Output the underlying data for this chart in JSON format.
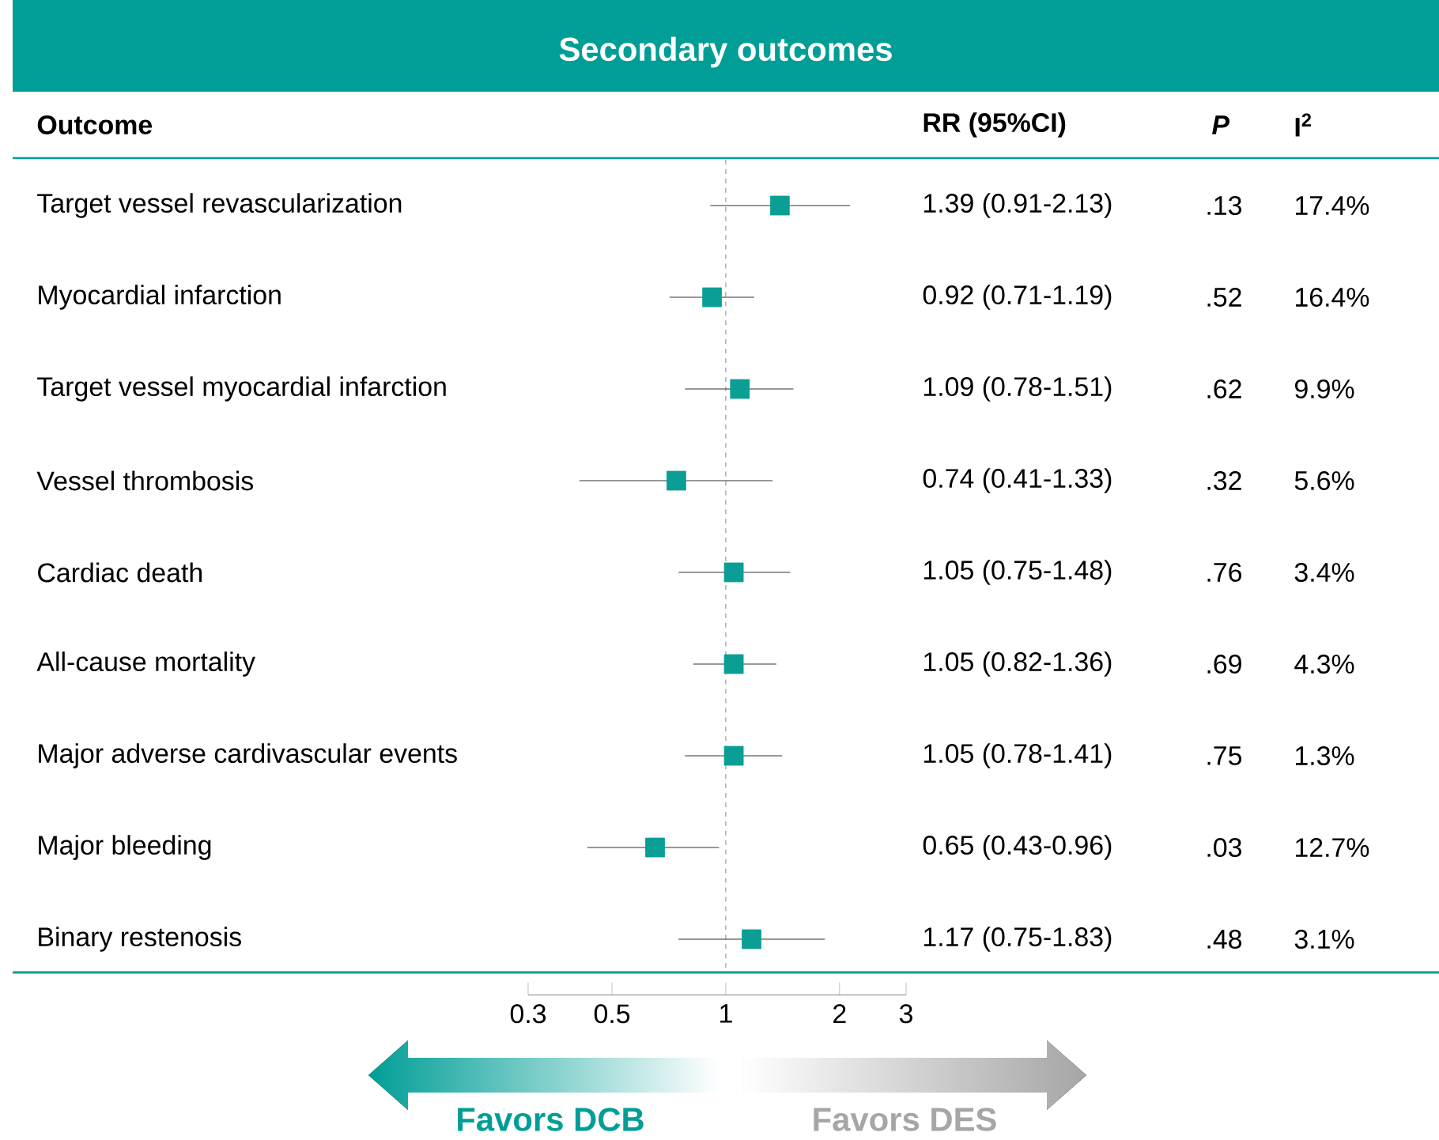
{
  "chart_data": {
    "type": "scatter",
    "title": "Secondary outcomes",
    "orientation": "horizontal",
    "categories": [
      "Target vessel revascularization",
      "Myocardial infarction",
      "Target vessel myocardial infarction",
      "Vessel thrombosis",
      "Cardiac death",
      "All-cause mortality",
      "Major adverse cardivascular events",
      "Major bleeding",
      "Binary restenosis"
    ],
    "values": [
      1.39,
      0.92,
      1.09,
      0.74,
      1.05,
      1.05,
      1.05,
      0.65,
      1.17
    ],
    "errors": [
      [
        0.91,
        2.13
      ],
      [
        0.71,
        1.19
      ],
      [
        0.78,
        1.51
      ],
      [
        0.41,
        1.33
      ],
      [
        0.75,
        1.48
      ],
      [
        0.82,
        1.36
      ],
      [
        0.78,
        1.41
      ],
      [
        0.43,
        0.96
      ],
      [
        0.75,
        1.83
      ]
    ],
    "value_labels": [
      "1.39 (0.91-2.13)",
      "0.92 (0.71-1.19)",
      "1.09 (0.78-1.51)",
      "0.74 (0.41-1.33)",
      "1.05 (0.75-1.48)",
      "1.05 (0.82-1.36)",
      "1.05 (0.78-1.41)",
      "0.65 (0.43-0.96)",
      "1.17 (0.75-1.83)"
    ],
    "color": "#0a9e95",
    "marker": "square",
    "log": "x",
    "xlim": [
      0.3,
      3
    ],
    "xticks": [
      0.3,
      0.5,
      1,
      2,
      3
    ],
    "ref_lines": [
      {
        "axis": "x",
        "value": 1,
        "line_style": "dashed",
        "color": "#666666"
      }
    ],
    "tick_labels": "x",
    "grid": false,
    "annotations": [
      "Outcome",
      "RR (95%CI)",
      "*P*",
      "I$^{2}$",
      ".13",
      ".52",
      ".62",
      ".32",
      ".76",
      ".69",
      ".75",
      ".03",
      ".48",
      "17.4%",
      "16.4%",
      "9.9%",
      "5.6%",
      "3.4%",
      "4.3%",
      "1.3%",
      "12.7%",
      "3.1%",
      "Favors DCB",
      "Favors DES"
    ]
  }
}
